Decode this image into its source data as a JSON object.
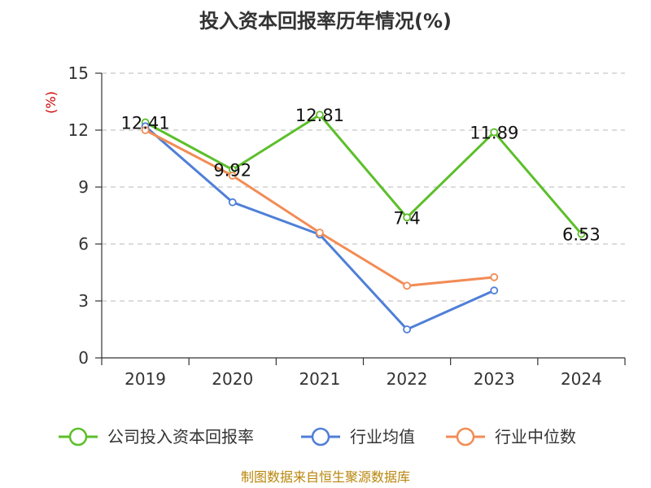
{
  "chart_data": {
    "type": "line",
    "title": "投入资本回报率历年情况(%)",
    "ylabel": "(%)",
    "xlabel": "",
    "categories": [
      "2019",
      "2020",
      "2021",
      "2022",
      "2023",
      "2024"
    ],
    "ylim": [
      0,
      15
    ],
    "yticks": [
      0,
      3,
      6,
      9,
      12,
      15
    ],
    "grid": "horizontal-dashed",
    "legend_position": "bottom",
    "series": [
      {
        "name": "公司投入资本回报率",
        "color": "#5cbf2a",
        "values": [
          12.41,
          9.92,
          12.81,
          7.4,
          11.89,
          6.53
        ],
        "labels": [
          "12.41",
          "9.92",
          "12.81",
          "7.4",
          "11.89",
          "6.53"
        ]
      },
      {
        "name": "行业均值",
        "color": "#4f7fd8",
        "values": [
          12.2,
          8.2,
          6.5,
          1.5,
          3.55,
          null
        ]
      },
      {
        "name": "行业中位数",
        "color": "#f28c55",
        "values": [
          12.0,
          9.6,
          6.6,
          3.8,
          4.25,
          null
        ]
      }
    ]
  },
  "footer": {
    "source": "制图数据来自恒生聚源数据库"
  }
}
